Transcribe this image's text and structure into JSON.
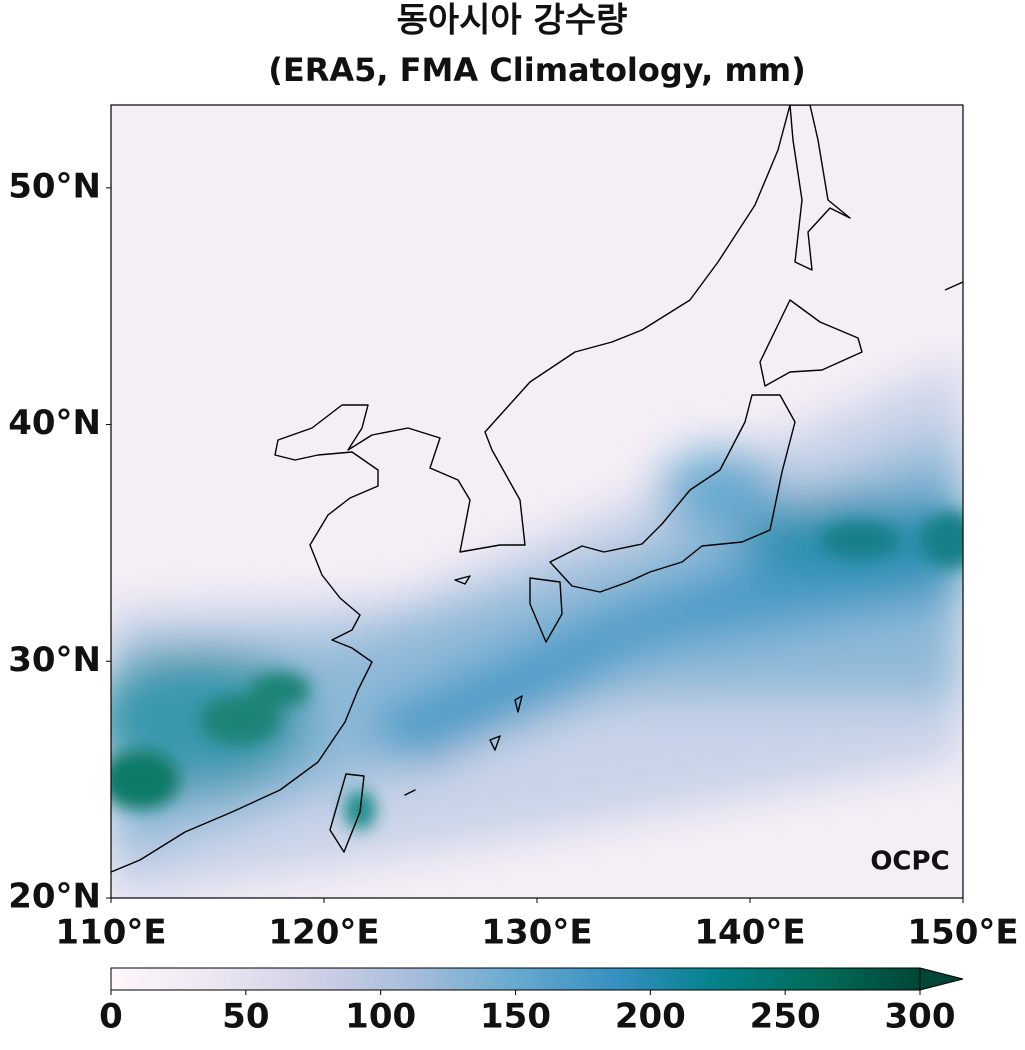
{
  "map_data": {
    "title": "동아시아 강수량",
    "subtitle": "(ERA5, FMA Climatology, mm)",
    "xlim": [
      110,
      150
    ],
    "ylim": [
      20,
      53.5
    ],
    "xticks": [
      {
        "value": 110,
        "label": "110°E"
      },
      {
        "value": 120,
        "label": "120°E"
      },
      {
        "value": 130,
        "label": "130°E"
      },
      {
        "value": 140,
        "label": "140°E"
      },
      {
        "value": 150,
        "label": "150°E"
      }
    ],
    "yticks": [
      {
        "value": 20,
        "label": "20°N"
      },
      {
        "value": 30,
        "label": "30°N"
      },
      {
        "value": 40,
        "label": "40°N"
      },
      {
        "value": 50,
        "label": "50°N"
      }
    ],
    "colorbar": {
      "lim": [
        0,
        300
      ],
      "ticks": [
        0,
        50,
        100,
        150,
        200,
        250,
        300
      ],
      "colors": [
        "#fff7fb",
        "#ece7f2",
        "#d0d1e6",
        "#a6bddb",
        "#67a9cf",
        "#3690c0",
        "#02818a",
        "#016c59",
        "#014636"
      ]
    },
    "logo": "OCPC"
  }
}
